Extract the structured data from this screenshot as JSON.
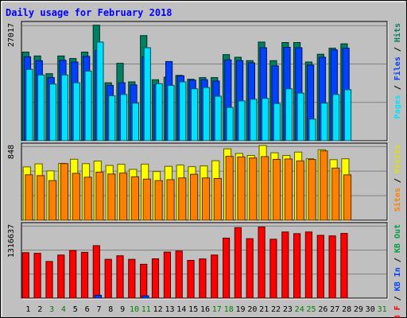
{
  "chart_data": {
    "type": "bar",
    "title": "Daily usage for February 2018",
    "categories": [
      "1",
      "2",
      "3",
      "4",
      "5",
      "6",
      "7",
      "8",
      "9",
      "10",
      "11",
      "12",
      "13",
      "14",
      "15",
      "16",
      "17",
      "18",
      "19",
      "20",
      "21",
      "22",
      "23",
      "24",
      "25",
      "26",
      "27",
      "28",
      "29",
      "30",
      "31"
    ],
    "weekend_days": [
      "3",
      "4",
      "10",
      "11",
      "17",
      "18",
      "24",
      "25",
      "31"
    ],
    "panels": [
      {
        "id": "hits-files-pages",
        "max_label": "27017",
        "ylim": [
          0,
          27017
        ],
        "axis_label": [
          {
            "text": "Pages",
            "color": "#00e0ff"
          },
          {
            "text": " / ",
            "color": "#000000"
          },
          {
            "text": "Files",
            "color": "#0040ff"
          },
          {
            "text": " / ",
            "color": "#000000"
          },
          {
            "text": "Hits",
            "color": "#008060"
          }
        ],
        "series": [
          {
            "name": "Hits",
            "color": "#008060",
            "values": [
              20500,
              19600,
              15500,
              19600,
              19000,
              20500,
              26700,
              13400,
              17900,
              13600,
              24300,
              14100,
              14700,
              15100,
              14200,
              14600,
              14600,
              19900,
              19300,
              18500,
              22800,
              18500,
              22700,
              22700,
              18200,
              20000,
              21400,
              22400,
              0,
              0,
              0
            ]
          },
          {
            "name": "Files",
            "color": "#0040ff",
            "values": [
              19400,
              18500,
              14600,
              18600,
              18200,
              19500,
              20900,
              12800,
              13400,
              12900,
              19400,
              12900,
              18300,
              15000,
              14000,
              14100,
              13800,
              18700,
              18500,
              18000,
              21500,
              17300,
              21600,
              21500,
              17500,
              19300,
              21000,
              21400,
              0,
              0,
              0
            ]
          },
          {
            "name": "Pages",
            "color": "#00e0ff",
            "values": [
              16500,
              15200,
              13100,
              15200,
              13400,
              16100,
              22800,
              10400,
              10700,
              8700,
              21500,
              13200,
              12800,
              13600,
              12000,
              12300,
              10300,
              7700,
              9200,
              9600,
              9800,
              8600,
              12000,
              11000,
              5000,
              8700,
              10700,
              11800,
              0,
              0,
              0
            ]
          }
        ]
      },
      {
        "id": "visits-sites",
        "max_label": "848",
        "ylim": [
          0,
          848
        ],
        "axis_label": [
          {
            "text": "Sites",
            "color": "#ff8000"
          },
          {
            "text": " / ",
            "color": "#000000"
          },
          {
            "text": "Visits",
            "color": "#e0e000"
          }
        ],
        "series": [
          {
            "name": "Visits",
            "color": "#ffff00",
            "values": [
              605,
              640,
              560,
              645,
              692,
              642,
              671,
              622,
              635,
              577,
              637,
              553,
              612,
              626,
              608,
              616,
              675,
              810,
              758,
              735,
              848,
              765,
              734,
              773,
              697,
              800,
              687,
              697,
              0,
              0,
              0
            ]
          },
          {
            "name": "Sites",
            "color": "#ff8000",
            "values": [
              516,
              506,
              449,
              642,
              532,
              488,
              546,
              524,
              535,
              493,
              466,
              449,
              460,
              480,
              521,
              480,
              474,
              724,
              718,
              706,
              722,
              690,
              695,
              673,
              689,
              787,
              592,
              515,
              0,
              0,
              0
            ]
          }
        ]
      },
      {
        "id": "kbytes",
        "max_label": "1316637",
        "ylim": [
          0,
          1316637
        ],
        "axis_label": [
          {
            "text": "KB F",
            "color": "#ff0000"
          },
          {
            "text": " / ",
            "color": "#000000"
          },
          {
            "text": "KB In",
            "color": "#0040ff"
          },
          {
            "text": " / ",
            "color": "#000000"
          },
          {
            "text": "KB Out",
            "color": "#00a040"
          }
        ],
        "series": [
          {
            "name": "KB F",
            "color": "#ff0000",
            "values": [
              818000,
              807000,
              660000,
              775000,
              857000,
              825000,
              945000,
              698000,
              763000,
              698000,
              610000,
              709000,
              828000,
              848000,
              680000,
              705000,
              775000,
              1080000,
              1270000,
              1070000,
              1280000,
              1060000,
              1190000,
              1160000,
              1190000,
              1130000,
              1120000,
              1165000,
              0,
              0,
              0
            ]
          },
          {
            "name": "KB In",
            "color": "#0040ff",
            "values": [
              0,
              0,
              0,
              0,
              0,
              0,
              52000,
              0,
              0,
              0,
              42000,
              0,
              0,
              0,
              0,
              0,
              0,
              0,
              0,
              0,
              0,
              0,
              0,
              0,
              0,
              0,
              0,
              0,
              0,
              0,
              0
            ]
          },
          {
            "name": "KB Out",
            "color": "#00a040",
            "values": [
              0,
              0,
              0,
              0,
              0,
              0,
              0,
              0,
              0,
              0,
              0,
              0,
              0,
              0,
              0,
              0,
              0,
              0,
              0,
              0,
              0,
              0,
              0,
              0,
              0,
              0,
              0,
              0,
              0,
              0,
              0
            ]
          }
        ]
      }
    ]
  }
}
